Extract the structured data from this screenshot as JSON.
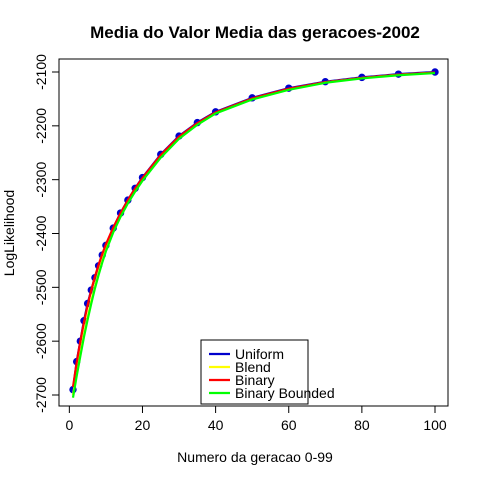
{
  "chart_data": {
    "type": "line",
    "title": "Media do Valor Media das geracoes-2002",
    "xlabel": "Numero da geracao 0-99",
    "ylabel": "LogLikelihood",
    "xlim": [
      1,
      100
    ],
    "ylim": [
      -2700,
      -2100
    ],
    "x_ticks": [
      0,
      20,
      40,
      60,
      80,
      100
    ],
    "y_ticks": [
      -2700,
      -2600,
      -2500,
      -2400,
      -2300,
      -2200,
      -2100
    ],
    "x_tick_labels": [
      "0",
      "20",
      "40",
      "60",
      "80",
      "100"
    ],
    "y_tick_labels": [
      "-2700",
      "-2600",
      "-2500",
      "-2400",
      "-2300",
      "-2200",
      "-2100"
    ],
    "grid": false,
    "legend_position": "bottom-center",
    "series": [
      {
        "name": "Uniform",
        "color": "#0000cc",
        "markers": true,
        "x": [
          1,
          2,
          3,
          4,
          5,
          6,
          7,
          8,
          9,
          10,
          12,
          14,
          16,
          18,
          20,
          25,
          30,
          35,
          40,
          50,
          60,
          70,
          80,
          90,
          100
        ],
        "y": [
          -2690,
          -2638,
          -2600,
          -2562,
          -2530,
          -2505,
          -2482,
          -2460,
          -2440,
          -2422,
          -2390,
          -2362,
          -2338,
          -2316,
          -2296,
          -2253,
          -2219,
          -2194,
          -2174,
          -2148,
          -2130,
          -2118,
          -2110,
          -2104,
          -2100
        ]
      },
      {
        "name": "Blend",
        "color": "#ffff00",
        "markers": false,
        "x": [
          1,
          2,
          3,
          4,
          5,
          6,
          7,
          8,
          9,
          10,
          12,
          14,
          16,
          18,
          20,
          25,
          30,
          35,
          40,
          50,
          60,
          70,
          80,
          90,
          100
        ],
        "y": [
          -2700,
          -2660,
          -2622,
          -2587,
          -2555,
          -2525,
          -2498,
          -2473,
          -2450,
          -2430,
          -2395,
          -2367,
          -2342,
          -2320,
          -2300,
          -2258,
          -2223,
          -2197,
          -2176,
          -2150,
          -2132,
          -2119,
          -2111,
          -2105,
          -2101
        ]
      },
      {
        "name": "Binary",
        "color": "#ff0000",
        "markers": false,
        "x": [
          1,
          2,
          3,
          4,
          5,
          6,
          7,
          8,
          9,
          10,
          12,
          14,
          16,
          18,
          20,
          25,
          30,
          35,
          40,
          50,
          60,
          70,
          80,
          90,
          100
        ],
        "y": [
          -2685,
          -2640,
          -2600,
          -2565,
          -2533,
          -2505,
          -2480,
          -2458,
          -2438,
          -2420,
          -2389,
          -2362,
          -2338,
          -2316,
          -2297,
          -2254,
          -2220,
          -2195,
          -2175,
          -2149,
          -2131,
          -2119,
          -2111,
          -2105,
          -2101
        ]
      },
      {
        "name": "Binary Bounded",
        "color": "#00ff00",
        "markers": false,
        "x": [
          1,
          2,
          3,
          4,
          5,
          6,
          7,
          8,
          9,
          10,
          12,
          14,
          16,
          18,
          20,
          25,
          30,
          35,
          40,
          50,
          60,
          70,
          80,
          90,
          100
        ],
        "y": [
          -2705,
          -2665,
          -2628,
          -2592,
          -2560,
          -2530,
          -2502,
          -2477,
          -2454,
          -2433,
          -2398,
          -2369,
          -2344,
          -2322,
          -2302,
          -2259,
          -2224,
          -2198,
          -2177,
          -2151,
          -2133,
          -2120,
          -2112,
          -2106,
          -2102
        ]
      }
    ]
  }
}
